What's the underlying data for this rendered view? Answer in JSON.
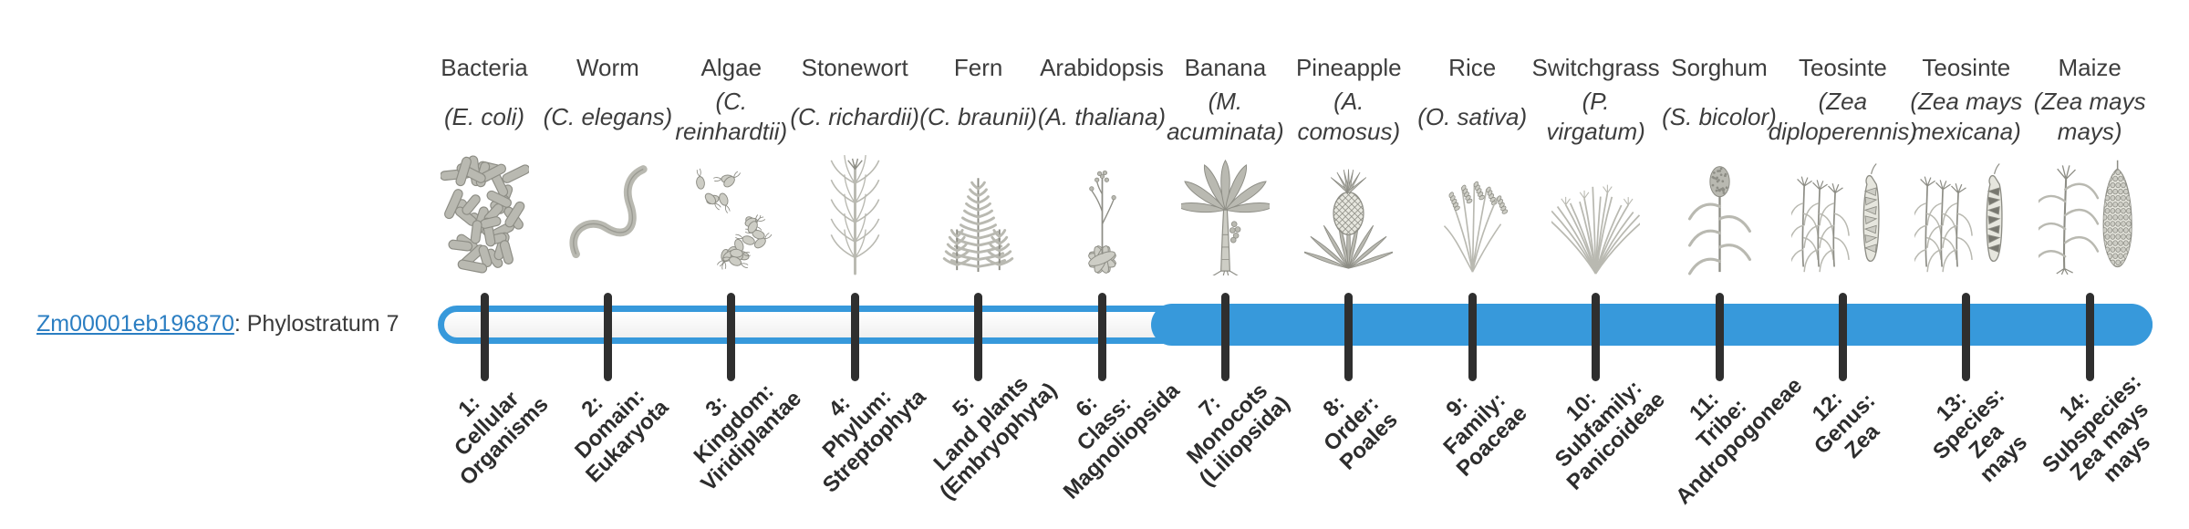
{
  "gene": {
    "id": "Zm00001eb196870",
    "suffix": ": Phylostratum 7",
    "phylostratum": 7
  },
  "colors": {
    "bar_blue": "#3799db",
    "tick_dark": "#2f2f2f",
    "link_blue": "#2b7ec2",
    "text_dark": "#3d3d3d",
    "illustration_gray": "#8d8d85"
  },
  "bar": {
    "total_strata": 14,
    "filled_from_stratum": 7
  },
  "taxa": [
    {
      "common": "Bacteria",
      "scientific": "(E. coli)",
      "icon": "bacteria-icon",
      "stratum_label": "1:\nCellular\nOrganisms"
    },
    {
      "common": "Worm",
      "scientific": "(C. elegans)",
      "icon": "worm-icon",
      "stratum_label": "2:\nDomain:\nEukaryota"
    },
    {
      "common": "Algae",
      "scientific": "(C.\nreinhardtii)",
      "icon": "algae-icon",
      "stratum_label": "3:\nKingdom:\nViridiplantae"
    },
    {
      "common": "Stonewort",
      "scientific": "(C. richardii)",
      "icon": "stonewort-icon",
      "stratum_label": "4:\nPhylum:\nStreptophyta"
    },
    {
      "common": "Fern",
      "scientific": "(C. braunii)",
      "icon": "fern-icon",
      "stratum_label": "5:\nLand plants\n(Embryophyta)"
    },
    {
      "common": "Arabidopsis",
      "scientific": "(A. thaliana)",
      "icon": "arabidopsis-icon",
      "stratum_label": "6:\nClass:\nMagnoliopsida"
    },
    {
      "common": "Banana",
      "scientific": "(M.\nacuminata)",
      "icon": "banana-plant-icon",
      "stratum_label": "7:\nMonocots\n(Liliopsida)"
    },
    {
      "common": "Pineapple",
      "scientific": "(A.\ncomosus)",
      "icon": "pineapple-icon",
      "stratum_label": "8:\nOrder:\nPoales"
    },
    {
      "common": "Rice",
      "scientific": "(O. sativa)",
      "icon": "rice-plant-icon",
      "stratum_label": "9:\nFamily:\nPoaceae"
    },
    {
      "common": "Switchgrass",
      "scientific": "(P.\nvirgatum)",
      "icon": "switchgrass-icon",
      "stratum_label": "10:\nSubfamily:\nPanicoideae"
    },
    {
      "common": "Sorghum",
      "scientific": "(S. bicolor)",
      "icon": "sorghum-icon",
      "stratum_label": "11:\nTribe:\nAndropogoneae"
    },
    {
      "common": "Teosinte",
      "scientific": "(Zea\ndiploperennis)",
      "icon": "teosinte-diploperennis-icon",
      "stratum_label": "12:\nGenus:\nZea"
    },
    {
      "common": "Teosinte",
      "scientific": "(Zea mays\nmexicana)",
      "icon": "teosinte-mexicana-icon",
      "stratum_label": "13:\nSpecies:\nZea\nmays"
    },
    {
      "common": "Maize",
      "scientific": "(Zea mays\nmays)",
      "icon": "maize-icon",
      "stratum_label": "14:\nSubspecies:\nZea mays\nmays"
    }
  ]
}
